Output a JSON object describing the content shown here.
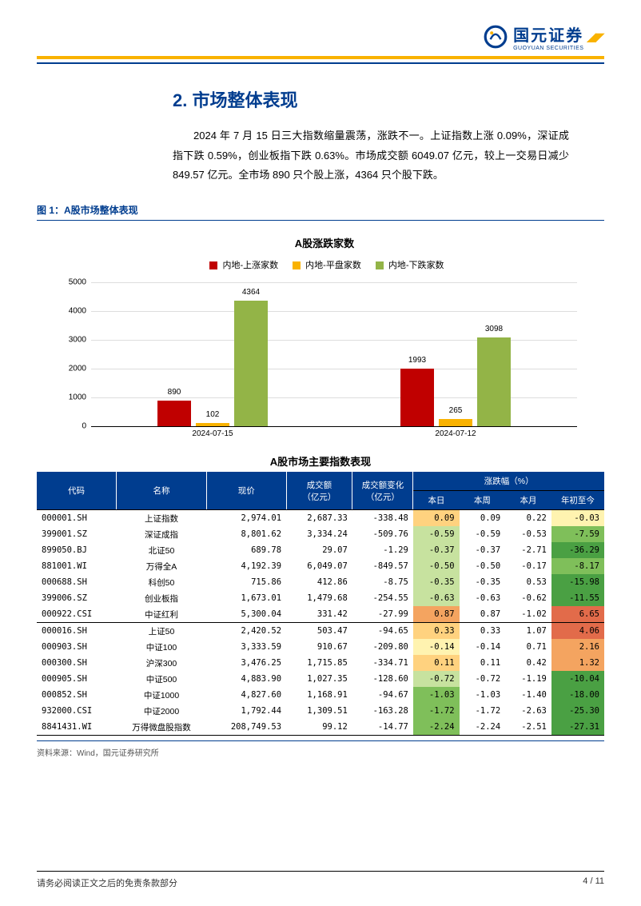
{
  "logo": {
    "cn": "国元证券",
    "en": "GUOYUAN SECURITIES"
  },
  "section": {
    "num": "2.",
    "title": "市场整体表现"
  },
  "summary": "2024 年 7 月 15 日三大指数缩量震荡，涨跌不一。上证指数上涨 0.09%，深证成指下跌 0.59%，创业板指下跌 0.63%。市场成交额 6049.07 亿元，较上一交易日减少 849.57 亿元。全市场 890 只个股上涨，4364 只个股下跌。",
  "fig1_caption": "图 1：A股市场整体表现",
  "bar_chart": {
    "title": "A股涨跌家数",
    "legend": [
      {
        "label": "内地-上涨家数",
        "color": "#c00000"
      },
      {
        "label": "内地-平盘家数",
        "color": "#f9b200"
      },
      {
        "label": "内地-下跌家数",
        "color": "#93b447"
      }
    ],
    "y_max": 5000,
    "y_step": 1000,
    "groups": [
      {
        "date": "2024-07-15",
        "values": [
          890,
          102,
          4364
        ]
      },
      {
        "date": "2024-07-12",
        "values": [
          1993,
          265,
          3098
        ]
      }
    ]
  },
  "table": {
    "title": "A股市场主要指数表现",
    "head1": [
      "代码",
      "名称",
      "现价",
      "成交额\n（亿元）",
      "成交额变化\n（亿元）",
      "涨跌幅（%）"
    ],
    "head2": [
      "本日",
      "本周",
      "本月",
      "年初至今"
    ],
    "rows": [
      {
        "code": "000001.SH",
        "name": "上证指数",
        "price": "2,974.01",
        "vol": "2,687.33",
        "dvol": "-338.48",
        "pct": [
          0.09,
          0.09,
          0.22,
          -0.03
        ]
      },
      {
        "code": "399001.SZ",
        "name": "深证成指",
        "price": "8,801.62",
        "vol": "3,334.24",
        "dvol": "-509.76",
        "pct": [
          -0.59,
          -0.59,
          -0.53,
          -7.59
        ]
      },
      {
        "code": "899050.BJ",
        "name": "北证50",
        "price": "689.78",
        "vol": "29.07",
        "dvol": "-1.29",
        "pct": [
          -0.37,
          -0.37,
          -2.71,
          -36.29
        ]
      },
      {
        "code": "881001.WI",
        "name": "万得全A",
        "price": "4,192.39",
        "vol": "6,049.07",
        "dvol": "-849.57",
        "pct": [
          -0.5,
          -0.5,
          -0.17,
          -8.17
        ]
      },
      {
        "code": "000688.SH",
        "name": "科创50",
        "price": "715.86",
        "vol": "412.86",
        "dvol": "-8.75",
        "pct": [
          -0.35,
          -0.35,
          0.53,
          -15.98
        ]
      },
      {
        "code": "399006.SZ",
        "name": "创业板指",
        "price": "1,673.01",
        "vol": "1,479.68",
        "dvol": "-254.55",
        "pct": [
          -0.63,
          -0.63,
          -0.62,
          -11.55
        ]
      },
      {
        "code": "000922.CSI",
        "name": "中证红利",
        "price": "5,300.04",
        "vol": "331.42",
        "dvol": "-27.99",
        "pct": [
          0.87,
          0.87,
          -1.02,
          6.65
        ],
        "sep": true
      },
      {
        "code": "000016.SH",
        "name": "上证50",
        "price": "2,420.52",
        "vol": "503.47",
        "dvol": "-94.65",
        "pct": [
          0.33,
          0.33,
          1.07,
          4.06
        ],
        "sep_above": true
      },
      {
        "code": "000903.SH",
        "name": "中证100",
        "price": "3,333.59",
        "vol": "910.67",
        "dvol": "-209.80",
        "pct": [
          -0.14,
          -0.14,
          0.71,
          2.16
        ]
      },
      {
        "code": "000300.SH",
        "name": "沪深300",
        "price": "3,476.25",
        "vol": "1,715.85",
        "dvol": "-334.71",
        "pct": [
          0.11,
          0.11,
          0.42,
          1.32
        ]
      },
      {
        "code": "000905.SH",
        "name": "中证500",
        "price": "4,883.90",
        "vol": "1,027.35",
        "dvol": "-128.60",
        "pct": [
          -0.72,
          -0.72,
          -1.19,
          -10.04
        ]
      },
      {
        "code": "000852.SH",
        "name": "中证1000",
        "price": "4,827.60",
        "vol": "1,168.91",
        "dvol": "-94.67",
        "pct": [
          -1.03,
          -1.03,
          -1.4,
          -18.0
        ]
      },
      {
        "code": "932000.CSI",
        "name": "中证2000",
        "price": "1,792.44",
        "vol": "1,309.51",
        "dvol": "-163.28",
        "pct": [
          -1.72,
          -1.72,
          -2.63,
          -25.3
        ]
      },
      {
        "code": "8841431.WI",
        "name": "万得微盘股指数",
        "price": "208,749.53",
        "vol": "99.12",
        "dvol": "-14.77",
        "pct": [
          -2.24,
          -2.24,
          -2.51,
          -27.31
        ]
      }
    ],
    "heat_colors": {
      "neg3": "#4aa043",
      "neg2": "#7fbf5a",
      "neg1": "#c7e29f",
      "neu": "#fff3b0",
      "pos1": "#ffd27f",
      "pos2": "#f4a460",
      "pos3": "#e26b4a"
    }
  },
  "source": "资料来源：Wind，国元证券研究所",
  "footer": {
    "left": "请务必阅读正文之后的免责条款部分",
    "right": "4 / 11"
  }
}
